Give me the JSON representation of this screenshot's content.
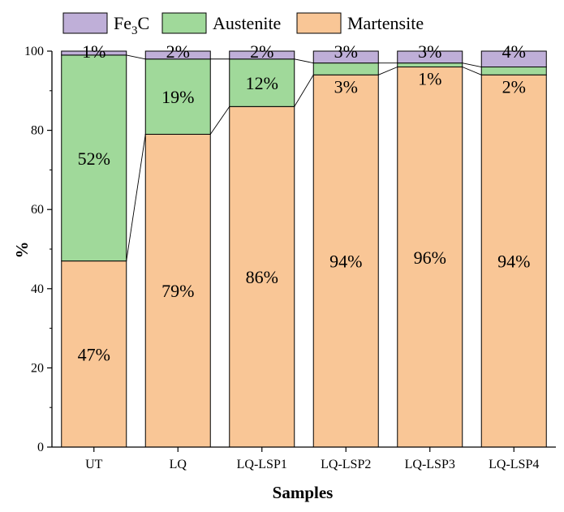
{
  "chart_data": {
    "type": "bar",
    "stacked": true,
    "xlabel": "Samples",
    "ylabel": "%",
    "ylim": [
      0,
      100
    ],
    "yticks": [
      0,
      20,
      40,
      60,
      80,
      100
    ],
    "categories": [
      "UT",
      "LQ",
      "LQ-LSP1",
      "LQ-LSP2",
      "LQ-LSP3",
      "LQ-LSP4"
    ],
    "legend_position": "top",
    "legend_order": [
      2,
      1,
      0
    ],
    "series": [
      {
        "name": "Martensite",
        "color": "#F9C696",
        "values": [
          47,
          79,
          86,
          94,
          96,
          94
        ],
        "labels": [
          "47%",
          "79%",
          "86%",
          "94%",
          "96%",
          "94%"
        ]
      },
      {
        "name": "Austenite",
        "color": "#A0D99A",
        "values": [
          52,
          19,
          12,
          3,
          1,
          2
        ],
        "labels": [
          "52%",
          "19%",
          "12%",
          "3%",
          "1%",
          "2%"
        ]
      },
      {
        "name": "Fe3C",
        "color": "#BFAFD8",
        "values": [
          1,
          2,
          2,
          3,
          3,
          4
        ],
        "labels": [
          "1%",
          "2%",
          "2%",
          "3%",
          "3%",
          "4%"
        ]
      }
    ]
  }
}
